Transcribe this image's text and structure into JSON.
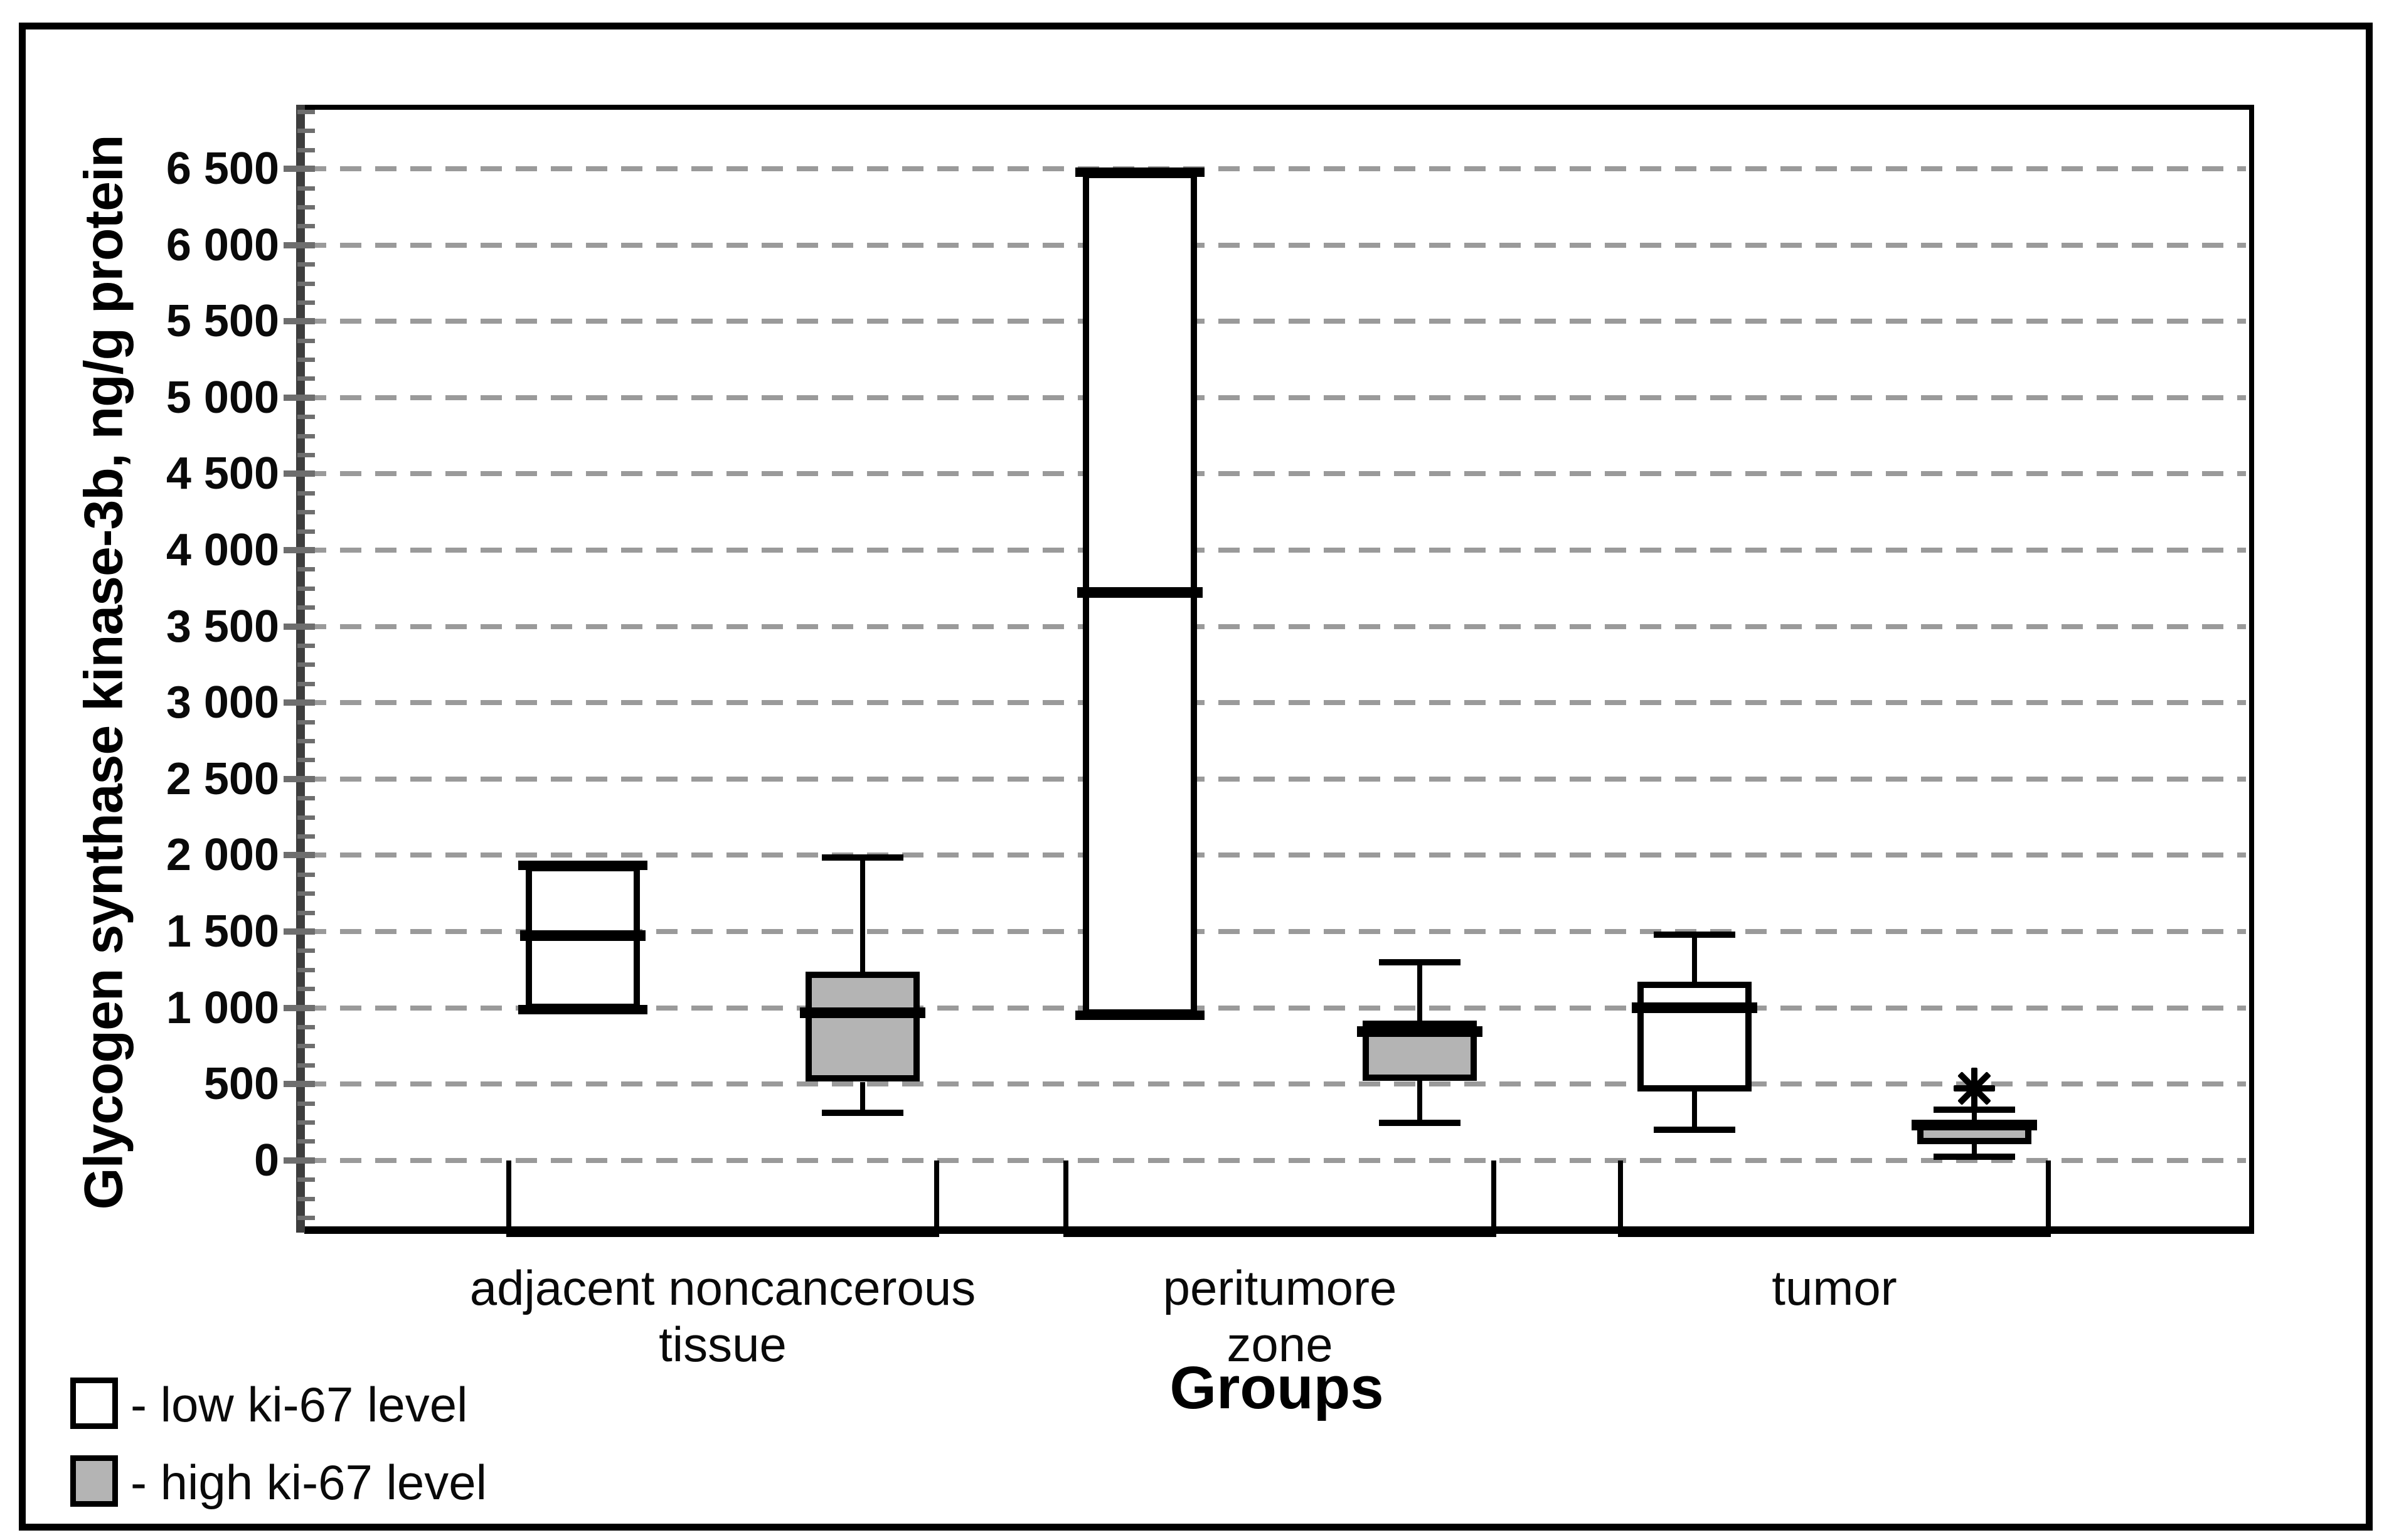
{
  "figure": {
    "y_axis": {
      "title": "Glycogen synthase kinase-3b, ng/g protein",
      "ticks": [
        {
          "value": 6500,
          "label": "6 500"
        },
        {
          "value": 6000,
          "label": "6 000"
        },
        {
          "value": 5500,
          "label": "5 500"
        },
        {
          "value": 5000,
          "label": "5 000"
        },
        {
          "value": 4500,
          "label": "4 500"
        },
        {
          "value": 4000,
          "label": "4 000"
        },
        {
          "value": 3500,
          "label": "3 500"
        },
        {
          "value": 3000,
          "label": "3 000"
        },
        {
          "value": 2500,
          "label": "2 500"
        },
        {
          "value": 2000,
          "label": "2 000"
        },
        {
          "value": 1500,
          "label": "1 500"
        },
        {
          "value": 1000,
          "label": "1 000"
        },
        {
          "value": 500,
          "label": "500"
        },
        {
          "value": 0,
          "label": "0"
        }
      ],
      "minor_tick_step": 125
    },
    "x_axis": {
      "title": "Groups",
      "group_label_lines": [
        [
          "adjacent noncancerous",
          "tissue"
        ],
        [
          "peritumore",
          "zone"
        ],
        [
          "tumor"
        ]
      ]
    },
    "legend": {
      "items": [
        {
          "swatch": "#ffffff",
          "label": "- low ki-67 level"
        },
        {
          "swatch": "#b4b4b4",
          "label": "- high ki-67 level"
        }
      ]
    },
    "colors": {
      "low_fill": "#ffffff",
      "high_fill": "#b4b4b4",
      "grid": "#9a9a9a",
      "axis_bar": "#3d3d3d",
      "tick": "#6e6e6e",
      "line": "#000000"
    }
  },
  "chart_data": {
    "type": "boxplot",
    "title": "",
    "xlabel": "Groups",
    "ylabel": "Glycogen synthase kinase-3b, ng/g protein",
    "ylim": [
      -400,
      6920
    ],
    "grid": "dashed-horizontal",
    "legend_position": "bottom-left",
    "categories": [
      "adjacent noncancerous tissue",
      "peritumore zone",
      "tumor"
    ],
    "series": [
      {
        "name": "low ki-67 level",
        "fill": "#ffffff",
        "boxes": [
          {
            "q1": 985,
            "median": 1470,
            "q3": 1935,
            "whisker_low": 985,
            "whisker_high": 1935,
            "caps_at_edges": true
          },
          {
            "q1": 950,
            "median": 3720,
            "q3": 6480,
            "whisker_low": 950,
            "whisker_high": 6480,
            "caps_at_edges": true
          },
          {
            "q1": 450,
            "median": 1000,
            "q3": 1170,
            "whisker_low": 200,
            "whisker_high": 1480,
            "caps_at_edges": false
          }
        ]
      },
      {
        "name": "high ki-67 level",
        "fill": "#b4b4b4",
        "boxes": [
          {
            "q1": 515,
            "median": 965,
            "q3": 1235,
            "whisker_low": 310,
            "whisker_high": 1985,
            "caps_at_edges": false
          },
          {
            "q1": 520,
            "median": 840,
            "q3": 915,
            "whisker_low": 245,
            "whisker_high": 1300,
            "caps_at_edges": false
          },
          {
            "q1": 105,
            "median": 230,
            "q3": 255,
            "whisker_low": 25,
            "whisker_high": 330,
            "caps_at_edges": false,
            "outliers": [
              {
                "value": 470,
                "symbol": "asterisk"
              }
            ]
          }
        ]
      }
    ]
  }
}
